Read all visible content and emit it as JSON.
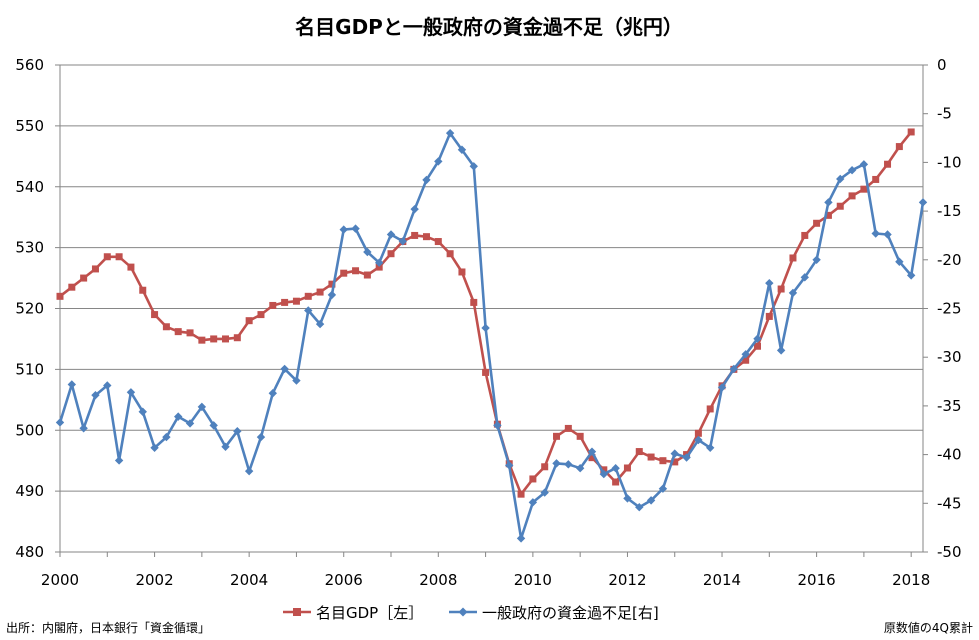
{
  "chart_data": {
    "type": "line",
    "title": "名目GDPと一般政府の資金過不足（兆円）",
    "x_ticks": [
      "2000",
      "2002",
      "2004",
      "2006",
      "2008",
      "2010",
      "2012",
      "2014",
      "2016",
      "2018"
    ],
    "x_range": [
      2000,
      2018.25
    ],
    "y_left": {
      "range": [
        480,
        560
      ],
      "ticks": [
        "560",
        "550",
        "540",
        "530",
        "520",
        "510",
        "500",
        "490",
        "480"
      ]
    },
    "y_right": {
      "range": [
        -50,
        0
      ],
      "ticks": [
        "0",
        "-5",
        "-10",
        "-15",
        "-20",
        "-25",
        "-30",
        "-35",
        "-40",
        "-45",
        "-50"
      ]
    },
    "grid": true,
    "legend": {
      "position": "bottom"
    },
    "series": [
      {
        "name": "名目GDP［左］",
        "axis": "left",
        "color": "#c0504d",
        "marker": "square",
        "x_start": 2000.0,
        "x_step": 0.25,
        "values": [
          522.0,
          523.5,
          525.0,
          526.5,
          528.5,
          528.5,
          526.8,
          523.0,
          519.0,
          517.0,
          516.2,
          516.0,
          514.8,
          515.0,
          515.0,
          515.2,
          518.0,
          519.0,
          520.5,
          521.0,
          521.2,
          522.0,
          522.7,
          524.0,
          525.8,
          526.2,
          525.5,
          526.8,
          529.0,
          531.0,
          532.0,
          531.8,
          531.0,
          529.0,
          526.0,
          521.0,
          509.5,
          501.0,
          494.5,
          489.5,
          492.0,
          494.0,
          499.0,
          500.3,
          499.0,
          495.5,
          493.5,
          491.5,
          493.8,
          496.5,
          495.6,
          495.0,
          494.8,
          496.0,
          499.5,
          503.5,
          507.3,
          510.0,
          511.5,
          513.8,
          518.7,
          523.2,
          528.3,
          532.0,
          534.0,
          535.3,
          536.8,
          538.5,
          539.6,
          541.2,
          543.7,
          546.6,
          549.0
        ]
      },
      {
        "name": "一般政府の資金過不足[右]",
        "axis": "right",
        "color": "#4f81bd",
        "marker": "diamond",
        "x_start": 2000.0,
        "x_step": 0.25,
        "values": [
          -36.7,
          -32.8,
          -37.3,
          -33.9,
          -32.9,
          -40.6,
          -33.6,
          -35.6,
          -39.3,
          -38.2,
          -36.1,
          -36.8,
          -35.1,
          -37.0,
          -39.2,
          -37.6,
          -41.7,
          -38.2,
          -33.7,
          -31.2,
          -32.4,
          -25.2,
          -26.6,
          -23.6,
          -16.9,
          -16.8,
          -19.2,
          -20.3,
          -17.4,
          -18.1,
          -14.8,
          -11.8,
          -9.9,
          -7.0,
          -8.7,
          -10.4,
          -27.0,
          -37.0,
          -41.1,
          -48.6,
          -44.9,
          -43.9,
          -40.9,
          -41.0,
          -41.4,
          -39.7,
          -42.0,
          -41.4,
          -44.5,
          -45.4,
          -44.7,
          -43.5,
          -39.9,
          -40.3,
          -38.5,
          -39.3,
          -33.1,
          -31.2,
          -29.7,
          -28.1,
          -22.4,
          -29.3,
          -23.4,
          -21.8,
          -20.0,
          -14.1,
          -11.7,
          -10.8,
          -10.2,
          -17.3,
          -17.4,
          -20.2,
          -21.6,
          -14.1
        ]
      }
    ]
  },
  "footer": {
    "source": "出所：内閣府，日本銀行「資金循環」",
    "note": "原数値の4Q累計"
  }
}
